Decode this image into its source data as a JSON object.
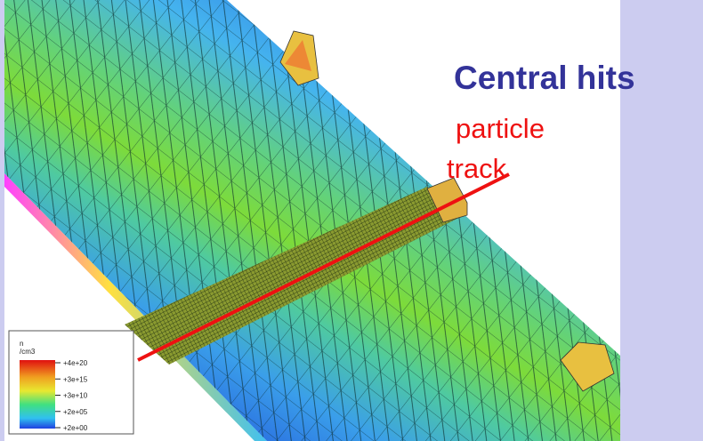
{
  "title": "Central hits",
  "annotation": {
    "lines": [
      "particle",
      "track"
    ]
  },
  "legend": {
    "heading": [
      "n",
      "/cm3"
    ],
    "labels": [
      "+4e+20",
      "+3e+15",
      "+3e+10",
      "+2e+05",
      "+2e+00"
    ]
  }
}
